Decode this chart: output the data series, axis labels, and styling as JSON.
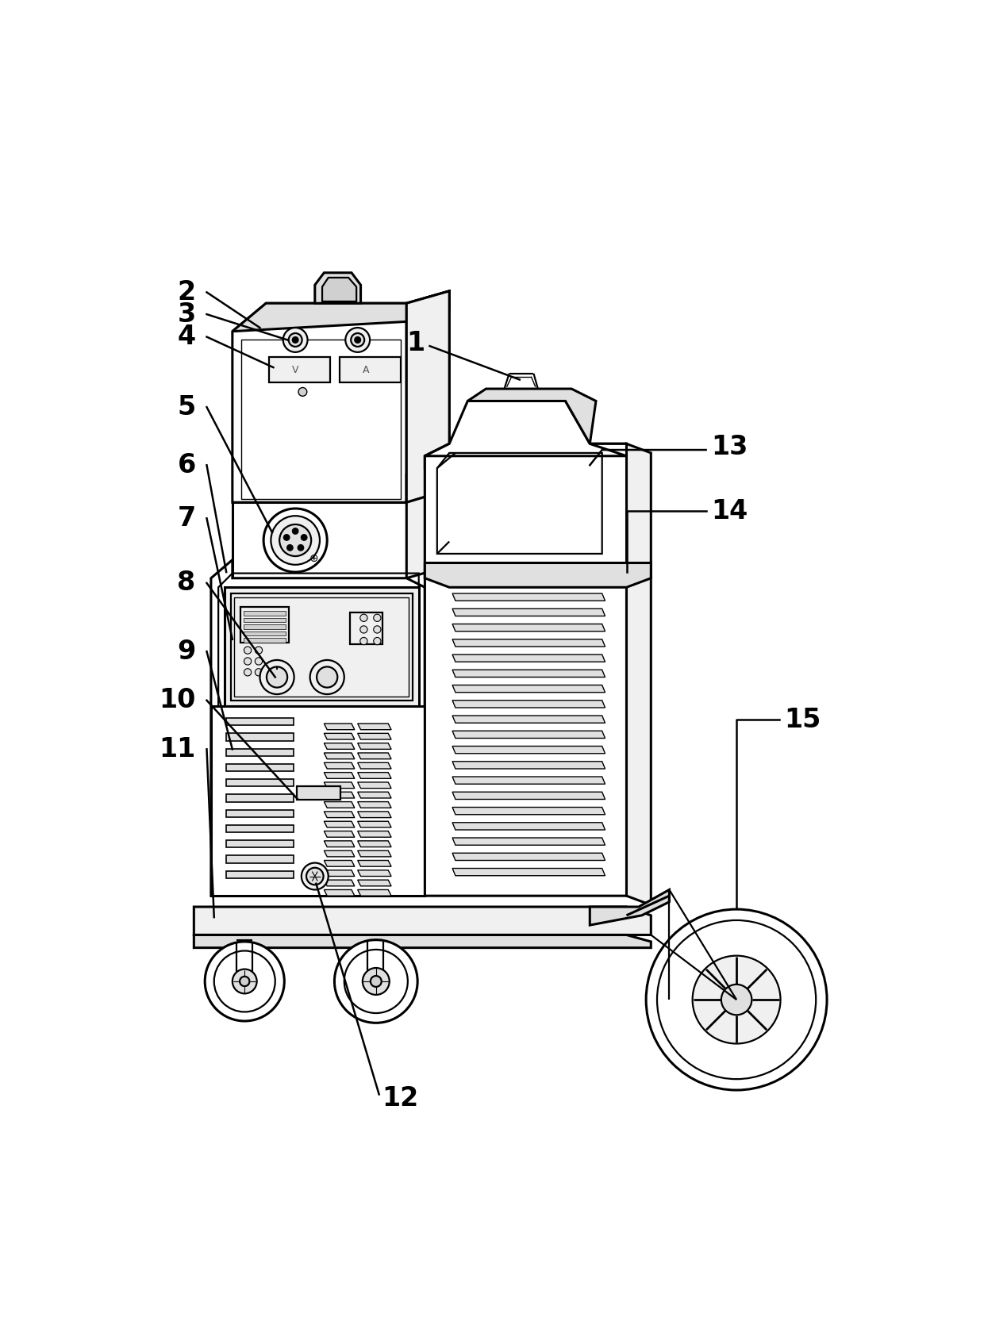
{
  "bg": "#ffffff",
  "lc": "#000000",
  "tlw": 2.2,
  "lw": 1.6,
  "tw": 1.0,
  "fig_w": 12.4,
  "fig_h": 16.84,
  "dpi": 100,
  "label_fs": 24
}
